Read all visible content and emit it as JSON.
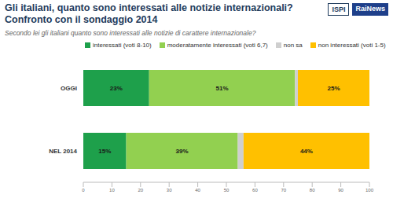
{
  "chart_data": {
    "type": "bar",
    "title": "Gli italiani, quanto sono interessati alle notizie internazionali?\nConfronto con il sondaggio 2014",
    "subtitle": "Secondo lei gli italiani quanto sono interessati alle notizie di carattere internazionale?",
    "logos": [
      "ISPI",
      "RaiNews"
    ],
    "orientation": "horizontal",
    "stacked": true,
    "data_labels": true,
    "legend": "top",
    "grid": false,
    "categories": [
      "OGGI",
      "NEL 2014"
    ],
    "xlim": [
      0,
      100
    ],
    "xticks": [
      0,
      10,
      20,
      30,
      40,
      50,
      60,
      70,
      80,
      90,
      100
    ],
    "series": [
      {
        "name": "interessati (voti 8-10)",
        "color": "#1ea04b",
        "values": [
          23,
          15
        ],
        "value_labels": [
          "23%",
          "15%"
        ]
      },
      {
        "name": "moderatamente interessati (voti 6,7)",
        "color": "#92d050",
        "values": [
          51,
          39
        ],
        "value_labels": [
          "51%",
          "39%"
        ]
      },
      {
        "name": "non sa",
        "color": "#cfcfcf",
        "values": [
          1,
          2
        ]
      },
      {
        "name": "non interessati (voti 1-5)",
        "color": "#ffc000",
        "values": [
          25,
          44
        ],
        "value_labels": [
          "25%",
          "44%"
        ]
      }
    ]
  }
}
